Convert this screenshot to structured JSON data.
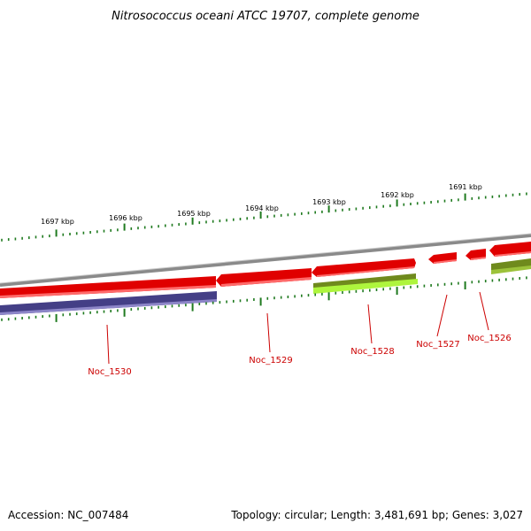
{
  "title": "Nitrosococcus oceani ATCC 19707, complete genome",
  "ruler": {
    "tick_labels": [
      "1697 kbp",
      "1696 kbp",
      "1695 kbp",
      "1694 kbp",
      "1693 kbp",
      "1692 kbp",
      "1691 kbp"
    ]
  },
  "genes": [
    {
      "name": "Noc_1530"
    },
    {
      "name": "Noc_1529"
    },
    {
      "name": "Noc_1528"
    },
    {
      "name": "Noc_1527"
    },
    {
      "name": "Noc_1526"
    }
  ],
  "colors": {
    "gene_forward": "#e00000",
    "gene_reverse_strand": "#443f86",
    "gene_alt": "#6f8a1d",
    "gene_alt_light": "#aef53d",
    "backbone": "#8a8a8a",
    "tick": "#1f7a1f",
    "label": "#cc0000"
  },
  "footer": {
    "accession": "Accession: NC_007484",
    "summary": "Topology: circular; Length: 3,481,691 bp; Genes: 3,027"
  }
}
